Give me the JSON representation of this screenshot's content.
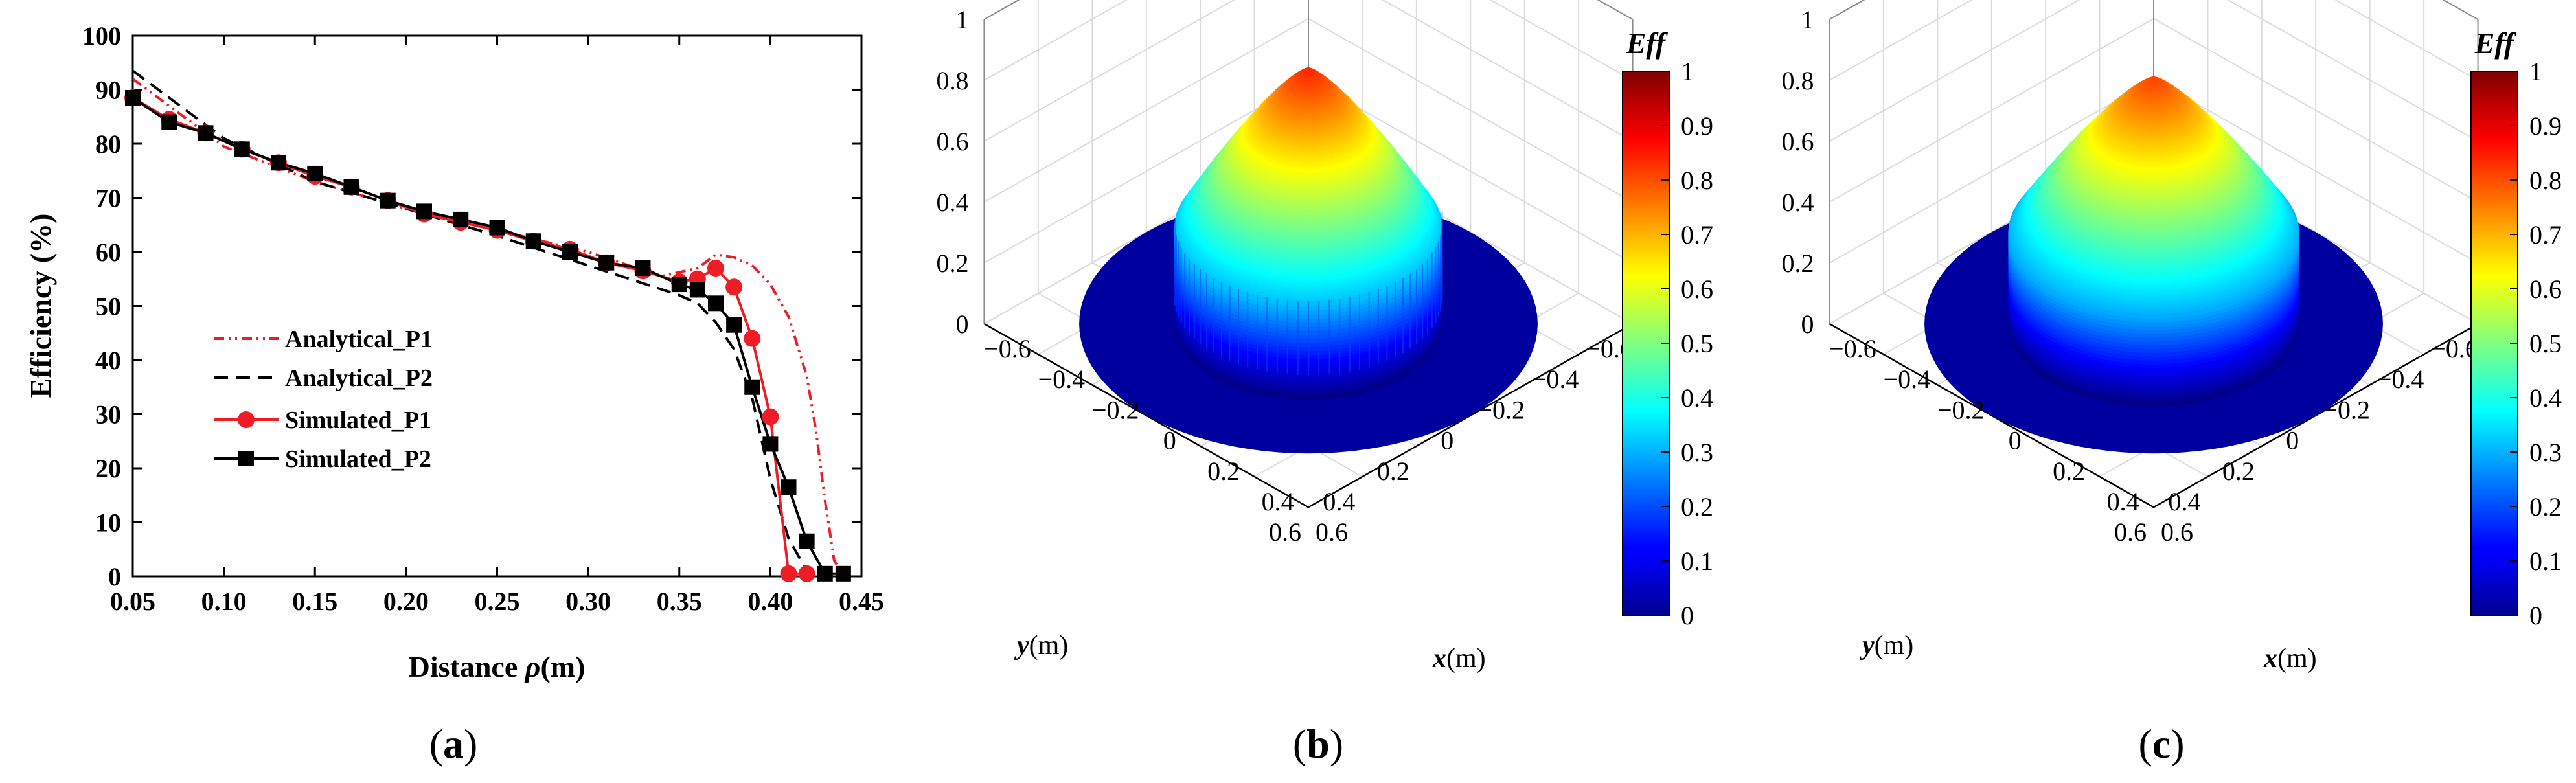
{
  "figure": {
    "panel_labels": [
      "(a)",
      "(b)",
      "(c)"
    ]
  },
  "chart_data": [
    {
      "type": "line",
      "panel": "(a)",
      "xlabel_prefix": "Distance ",
      "xlabel_symbol": "ρ",
      "xlabel_suffix": "(m)",
      "ylabel": "Efficiency (%)",
      "xlim": [
        0.05,
        0.45
      ],
      "ylim": [
        0,
        100
      ],
      "xticks": [
        "0.05",
        "0.10",
        "0.15",
        "0.20",
        "0.25",
        "0.30",
        "0.35",
        "0.40",
        "0.45"
      ],
      "yticks": [
        "0",
        "10",
        "20",
        "30",
        "40",
        "50",
        "60",
        "70",
        "80",
        "90",
        "100"
      ],
      "legend_position": "center-left",
      "series": [
        {
          "name": "Analytical_P1",
          "style": "dash-dot",
          "color": "#ee1c24",
          "marker": "none",
          "x": [
            0.05,
            0.1,
            0.15,
            0.2,
            0.25,
            0.3,
            0.34,
            0.36,
            0.37,
            0.38,
            0.39,
            0.4,
            0.41,
            0.42,
            0.425,
            0.43,
            0.435,
            0.44
          ],
          "y": [
            92.0,
            79.5,
            73.0,
            68.0,
            64.0,
            60.0,
            55.5,
            57.0,
            59.5,
            59.0,
            57.5,
            54.0,
            48.0,
            37.0,
            27.0,
            14.0,
            3.0,
            0
          ]
        },
        {
          "name": "Analytical_P2",
          "style": "dash",
          "color": "#000000",
          "marker": "none",
          "x": [
            0.05,
            0.1,
            0.15,
            0.2,
            0.25,
            0.3,
            0.35,
            0.36,
            0.37,
            0.38,
            0.39,
            0.4,
            0.41,
            0.42,
            0.43
          ],
          "y": [
            93.5,
            81.0,
            73.0,
            68.0,
            63.0,
            57.5,
            52.0,
            50.5,
            47.0,
            42.0,
            33.0,
            18.0,
            7.0,
            1.0,
            0
          ]
        },
        {
          "name": "Simulated_P1",
          "style": "solid",
          "color": "#ee1c24",
          "marker": "circle",
          "x": [
            0.05,
            0.07,
            0.09,
            0.11,
            0.13,
            0.15,
            0.17,
            0.19,
            0.21,
            0.23,
            0.25,
            0.27,
            0.29,
            0.31,
            0.33,
            0.35,
            0.36,
            0.37,
            0.38,
            0.39,
            0.4,
            0.41,
            0.42
          ],
          "y": [
            88.5,
            84.5,
            82.0,
            79.0,
            76.5,
            74.0,
            72.0,
            69.5,
            67.0,
            65.5,
            64.0,
            62.0,
            60.5,
            58.0,
            56.5,
            54.5,
            55.0,
            57.0,
            53.5,
            44.0,
            29.5,
            0.5,
            0.5
          ]
        },
        {
          "name": "Simulated_P2",
          "style": "solid",
          "color": "#000000",
          "marker": "square",
          "x": [
            0.05,
            0.07,
            0.09,
            0.11,
            0.13,
            0.15,
            0.17,
            0.19,
            0.21,
            0.23,
            0.25,
            0.27,
            0.29,
            0.31,
            0.33,
            0.35,
            0.36,
            0.37,
            0.38,
            0.39,
            0.4,
            0.41,
            0.42,
            0.43,
            0.44
          ],
          "y": [
            88.5,
            84.0,
            82.0,
            79.0,
            76.5,
            74.5,
            72.0,
            69.5,
            67.5,
            66.0,
            64.5,
            62.0,
            60.0,
            58.0,
            57.0,
            54.0,
            53.0,
            50.5,
            46.5,
            35.0,
            24.5,
            16.5,
            6.5,
            0.5,
            0.5
          ]
        }
      ]
    },
    {
      "type": "surface3d",
      "panel": "(b)",
      "xlabel_symbol": "x",
      "xlabel_unit": "(m)",
      "ylabel_symbol": "y",
      "ylabel_unit": "(m)",
      "xticks": [
        "−0.6",
        "−0.4",
        "−0.2",
        "0",
        "0.2",
        "0.4",
        "0.6"
      ],
      "yticks": [
        "0.6",
        "0.4",
        "0.2",
        "0",
        "−0.2",
        "−0.4",
        "−0.6"
      ],
      "zticks": [
        "0",
        "0.2",
        "0.4",
        "0.6",
        "0.8",
        "1"
      ],
      "zlim": [
        0,
        1
      ],
      "peak_efficiency": 0.84,
      "plateau_radius": 0.35,
      "disk_radius": 0.6,
      "edge_ripple": true,
      "colorbar": {
        "title": "Eff",
        "ticks": [
          "0",
          "0.1",
          "0.2",
          "0.3",
          "0.4",
          "0.5",
          "0.6",
          "0.7",
          "0.8",
          "0.9",
          "1"
        ],
        "colormap": "jet"
      }
    },
    {
      "type": "surface3d",
      "panel": "(c)",
      "xlabel_symbol": "x",
      "xlabel_unit": "(m)",
      "ylabel_symbol": "y",
      "ylabel_unit": "(m)",
      "xticks": [
        "−0.6",
        "−0.4",
        "−0.2",
        "0",
        "0.2",
        "0.4",
        "0.6"
      ],
      "yticks": [
        "0.6",
        "0.4",
        "0.2",
        "0",
        "−0.2",
        "−0.4",
        "−0.6"
      ],
      "zticks": [
        "0",
        "0.2",
        "0.4",
        "0.6",
        "0.8",
        "1"
      ],
      "zlim": [
        0,
        1
      ],
      "peak_efficiency": 0.79,
      "plateau_radius": 0.38,
      "disk_radius": 0.6,
      "edge_ripple": false,
      "colorbar": {
        "title": "Eff",
        "ticks": [
          "0",
          "0.1",
          "0.2",
          "0.3",
          "0.4",
          "0.5",
          "0.6",
          "0.7",
          "0.8",
          "0.9",
          "1"
        ],
        "colormap": "jet"
      }
    }
  ]
}
